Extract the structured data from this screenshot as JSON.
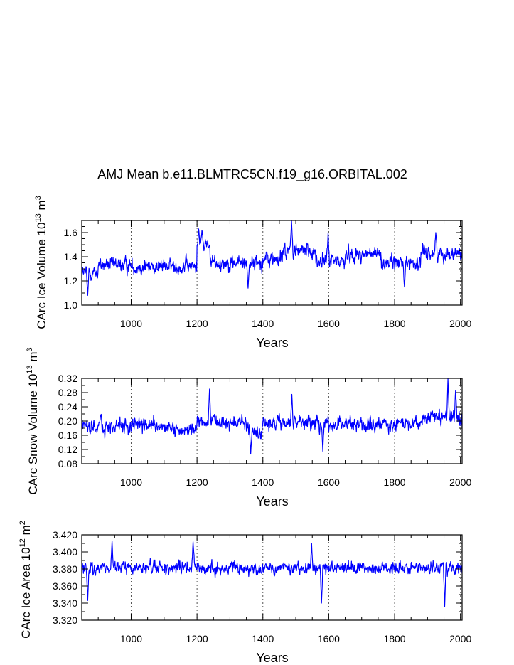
{
  "figure_title": "AMJ Mean b.e11.BLMTRC5CN.f19_g16.ORBITAL.002",
  "colors": {
    "series": "#0000ff",
    "axis": "#000000",
    "grid": "#555555"
  },
  "chart_data": [
    {
      "type": "line",
      "ylabel_main": "CArc Ice Volume 10",
      "ylabel_sup_exp": "13",
      "ylabel_unit": " m",
      "ylabel_sup_unit": "3",
      "xlabel": "Years",
      "xlim": [
        850,
        2005
      ],
      "ylim": [
        1.0,
        1.7
      ],
      "xticks": [
        1000,
        1200,
        1400,
        1600,
        1800,
        2000
      ],
      "yticks": [
        1.0,
        1.2,
        1.4,
        1.6
      ],
      "ytick_labels": [
        "1.0",
        "1.2",
        "1.4",
        "1.6"
      ],
      "yminor_step": 0.05,
      "vgrid": "dotted at major x ticks",
      "series": [
        {
          "name": "CArc Ice Volume",
          "segments": [
            {
              "from": 850,
              "to": 900,
              "mean": 1.27,
              "amp": 0.09
            },
            {
              "from": 900,
              "to": 1000,
              "mean": 1.33,
              "amp": 0.1
            },
            {
              "from": 1000,
              "to": 1200,
              "mean": 1.32,
              "amp": 0.1
            },
            {
              "from": 1200,
              "to": 1240,
              "mean": 1.5,
              "amp": 0.1
            },
            {
              "from": 1240,
              "to": 1300,
              "mean": 1.35,
              "amp": 0.1
            },
            {
              "from": 1300,
              "to": 1400,
              "mean": 1.35,
              "amp": 0.11
            },
            {
              "from": 1400,
              "to": 1460,
              "mean": 1.38,
              "amp": 0.12
            },
            {
              "from": 1460,
              "to": 1560,
              "mean": 1.45,
              "amp": 0.11
            },
            {
              "from": 1560,
              "to": 1650,
              "mean": 1.36,
              "amp": 0.11
            },
            {
              "from": 1650,
              "to": 1760,
              "mean": 1.42,
              "amp": 0.1
            },
            {
              "from": 1760,
              "to": 1880,
              "mean": 1.35,
              "amp": 0.1
            },
            {
              "from": 1880,
              "to": 2005,
              "mean": 1.43,
              "amp": 0.1
            }
          ],
          "peaks": [
            [
              1205,
              1.63
            ],
            [
              1215,
              1.62
            ],
            [
              1487,
              1.7
            ],
            [
              1598,
              1.6
            ],
            [
              1925,
              1.6
            ],
            [
              868,
              1.08
            ],
            [
              1355,
              1.14
            ],
            [
              1830,
              1.15
            ]
          ]
        }
      ]
    },
    {
      "type": "line",
      "ylabel_main": "CArc Snow Volume 10",
      "ylabel_sup_exp": "13",
      "ylabel_unit": " m",
      "ylabel_sup_unit": "3",
      "xlabel": "Years",
      "xlim": [
        850,
        2005
      ],
      "ylim": [
        0.08,
        0.32
      ],
      "xticks": [
        1000,
        1200,
        1400,
        1600,
        1800,
        2000
      ],
      "yticks": [
        0.08,
        0.12,
        0.16,
        0.2,
        0.24,
        0.28,
        0.32
      ],
      "ytick_labels": [
        "0.08",
        "0.12",
        "0.16",
        "0.20",
        "0.24",
        "0.28",
        "0.32"
      ],
      "yminor_step": 0.02,
      "vgrid": "dotted at major x ticks",
      "series": [
        {
          "name": "CArc Snow Volume",
          "segments": [
            {
              "from": 850,
              "to": 1100,
              "mean": 0.185,
              "amp": 0.035
            },
            {
              "from": 1100,
              "to": 1200,
              "mean": 0.175,
              "amp": 0.03
            },
            {
              "from": 1200,
              "to": 1350,
              "mean": 0.195,
              "amp": 0.035
            },
            {
              "from": 1350,
              "to": 1400,
              "mean": 0.17,
              "amp": 0.03
            },
            {
              "from": 1400,
              "to": 1600,
              "mean": 0.195,
              "amp": 0.035
            },
            {
              "from": 1600,
              "to": 1800,
              "mean": 0.19,
              "amp": 0.035
            },
            {
              "from": 1800,
              "to": 1900,
              "mean": 0.195,
              "amp": 0.035
            },
            {
              "from": 1900,
              "to": 2005,
              "mean": 0.21,
              "amp": 0.04
            }
          ],
          "peaks": [
            [
              1238,
              0.29
            ],
            [
              1488,
              0.275
            ],
            [
              1962,
              0.32
            ],
            [
              1985,
              0.285
            ],
            [
              1363,
              0.107
            ],
            [
              1582,
              0.115
            ]
          ]
        }
      ]
    },
    {
      "type": "line",
      "ylabel_main": "CArc Ice Area 10",
      "ylabel_sup_exp": "12",
      "ylabel_unit": " m",
      "ylabel_sup_unit": "2",
      "xlabel": "Years",
      "xlim": [
        850,
        2005
      ],
      "ylim": [
        3.32,
        3.42
      ],
      "xticks": [
        1000,
        1200,
        1400,
        1600,
        1800,
        2000
      ],
      "yticks": [
        3.32,
        3.34,
        3.36,
        3.38,
        3.4,
        3.42
      ],
      "ytick_labels": [
        "3.320",
        "3.340",
        "3.360",
        "3.380",
        "3.400",
        "3.420"
      ],
      "yminor_step": 0.01,
      "vgrid": "dotted at major x ticks",
      "series": [
        {
          "name": "CArc Ice Area",
          "segments": [
            {
              "from": 850,
              "to": 2005,
              "mean": 3.381,
              "amp": 0.012
            }
          ],
          "peaks": [
            [
              942,
              3.413
            ],
            [
              1188,
              3.412
            ],
            [
              1548,
              3.41
            ],
            [
              1578,
              3.34
            ],
            [
              1952,
              3.336
            ],
            [
              868,
              3.343
            ]
          ]
        }
      ]
    }
  ]
}
